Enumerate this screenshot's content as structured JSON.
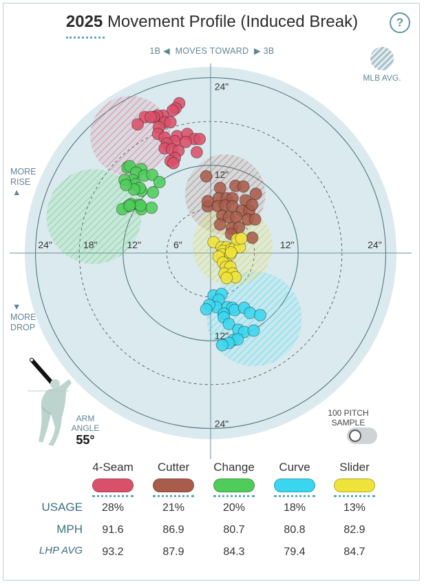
{
  "header": {
    "year": "2025",
    "title": "Movement Profile (Induced Break)",
    "help": "?"
  },
  "direction": {
    "left": "1B",
    "middle": "MOVES TOWARD",
    "right": "3B"
  },
  "legend": {
    "mlb_avg": "MLB AVG."
  },
  "side_labels": {
    "rise_1": "MORE",
    "rise_2": "RISE",
    "drop_1": "MORE",
    "drop_2": "DROP"
  },
  "arm_angle": {
    "label_1": "ARM",
    "label_2": "ANGLE",
    "value": "55°"
  },
  "sample_toggle": {
    "label_1": "100 PITCH",
    "label_2": "SAMPLE",
    "on": false
  },
  "table": {
    "row_labels": {
      "usage": "USAGE",
      "mph": "MPH",
      "lhp_avg": "LHP AVG"
    },
    "pitches": [
      {
        "name": "4-Seam",
        "color": "#d9506a",
        "usage": "28%",
        "mph": "91.6",
        "lhp_avg": "93.2"
      },
      {
        "name": "Cutter",
        "color": "#a85c4b",
        "usage": "21%",
        "mph": "86.9",
        "lhp_avg": "87.9"
      },
      {
        "name": "Change",
        "color": "#4fcc5a",
        "usage": "20%",
        "mph": "80.7",
        "lhp_avg": "84.3"
      },
      {
        "name": "Curve",
        "color": "#3ad6ef",
        "usage": "18%",
        "mph": "80.8",
        "lhp_avg": "79.4"
      },
      {
        "name": "Slider",
        "color": "#efe33a",
        "usage": "13%",
        "mph": "82.9",
        "lhp_avg": "84.7"
      }
    ]
  },
  "chart_data": {
    "type": "scatter",
    "title": "Movement Profile (Induced Break)",
    "xlabel": "",
    "ylabel": "",
    "units": "inches",
    "rings": [
      6,
      12,
      18,
      24
    ],
    "ring_labels": {
      "left": [
        "24\"",
        "18\"",
        "12\"",
        "6\""
      ],
      "right": [
        "12\"",
        "24\""
      ],
      "top": [
        "24\"",
        "12\""
      ],
      "bottom": [
        "12\"",
        "24\""
      ]
    },
    "x_orientation": "positive = toward 3B (right)",
    "y_orientation": "positive = more rise",
    "mlb_avg": [
      {
        "name": "4-Seam",
        "color": "#d9506a",
        "x": -11,
        "y": 16,
        "r": 5.5
      },
      {
        "name": "Cutter",
        "color": "#a85c4b",
        "x": 2,
        "y": 8,
        "r": 5.5
      },
      {
        "name": "Change",
        "color": "#4fcc5a",
        "x": -16,
        "y": 5,
        "r": 6.5
      },
      {
        "name": "Curve",
        "color": "#3ad6ef",
        "x": 6,
        "y": -9,
        "r": 6.5
      },
      {
        "name": "Slider",
        "color": "#efe33a",
        "x": 3,
        "y": 1,
        "r": 5.5
      }
    ],
    "series": [
      {
        "name": "4-Seam",
        "color": "#d9506a",
        "points": [
          [
            -4.3,
            20.5
          ],
          [
            -4.8,
            19.8
          ],
          [
            -5.2,
            19.5
          ],
          [
            -6.5,
            18.8
          ],
          [
            -7.3,
            18.8
          ],
          [
            -7.8,
            18.6
          ],
          [
            -9,
            18.6
          ],
          [
            -8.2,
            18.6
          ],
          [
            -6.3,
            17.9
          ],
          [
            -5.5,
            17.9
          ],
          [
            -7.1,
            17.2
          ],
          [
            -7.2,
            16.3
          ],
          [
            -6.3,
            15.8
          ],
          [
            -4.6,
            16
          ],
          [
            -3.2,
            16.3
          ],
          [
            -2.2,
            15.6
          ],
          [
            -1.5,
            15.6
          ],
          [
            -4.9,
            15.3
          ],
          [
            -3.4,
            15.2
          ],
          [
            -6,
            15
          ],
          [
            -6.3,
            14.3
          ],
          [
            -5.3,
            14.2
          ],
          [
            -4.4,
            14
          ],
          [
            -1.9,
            13.8
          ],
          [
            -4.9,
            13
          ],
          [
            -5.5,
            12.6
          ],
          [
            -5.1,
            12.3
          ],
          [
            -10,
            17.6
          ]
        ]
      },
      {
        "name": "Cutter",
        "color": "#a85c4b",
        "points": [
          [
            -0.6,
            10.5
          ],
          [
            1.3,
            8.9
          ],
          [
            3.4,
            9.2
          ],
          [
            4.5,
            9.1
          ],
          [
            1.1,
            7.5
          ],
          [
            2.2,
            7.5
          ],
          [
            3,
            7.5
          ],
          [
            4.8,
            7.2
          ],
          [
            -0.4,
            6.4
          ],
          [
            -0.4,
            7.1
          ],
          [
            1,
            6.4
          ],
          [
            2,
            6.5
          ],
          [
            3,
            6.4
          ],
          [
            4.3,
            5.8
          ],
          [
            5.3,
            5.8
          ],
          [
            5.7,
            6.6
          ],
          [
            6.2,
            8.1
          ],
          [
            1.6,
            5.1
          ],
          [
            2.5,
            4.9
          ],
          [
            3.5,
            4.9
          ],
          [
            5.1,
            4.6
          ],
          [
            6.1,
            4.6
          ],
          [
            2.9,
            3.4
          ],
          [
            3.9,
            3.5
          ],
          [
            5.7,
            2.1
          ],
          [
            1.3,
            3.9
          ],
          [
            2.8,
            2.6
          ]
        ]
      },
      {
        "name": "Change",
        "color": "#4fcc5a",
        "points": [
          [
            -11.4,
            11.7
          ],
          [
            -11.1,
            11.9
          ],
          [
            -9.5,
            11.5
          ],
          [
            -10.2,
            11
          ],
          [
            -9.1,
            10.6
          ],
          [
            -8,
            10.7
          ],
          [
            -7,
            9.7
          ],
          [
            -10.7,
            10
          ],
          [
            -11.8,
            10
          ],
          [
            -10.3,
            9.4
          ],
          [
            -9.5,
            8.5
          ],
          [
            -9.7,
            8.9
          ],
          [
            -10.5,
            8.7
          ],
          [
            -7.9,
            8.3
          ],
          [
            -11.6,
            9.3
          ],
          [
            -11.3,
            6.4
          ],
          [
            -12.1,
            6
          ],
          [
            -10.9,
            6.7
          ],
          [
            -9.8,
            6.6
          ],
          [
            -9.5,
            6
          ],
          [
            -8.1,
            6.2
          ],
          [
            -9.6,
            6.5
          ],
          [
            -11.1,
            6.5
          ]
        ]
      },
      {
        "name": "Curve",
        "color": "#3ad6ef",
        "points": [
          [
            0.4,
            -5.8
          ],
          [
            1.5,
            -5.6
          ],
          [
            1.1,
            -6.4
          ],
          [
            0.8,
            -7.4
          ],
          [
            2.3,
            -7.4
          ],
          [
            3,
            -7.5
          ],
          [
            3.3,
            -7.8
          ],
          [
            1.8,
            -8.3
          ],
          [
            -0.2,
            -7.1
          ],
          [
            -0.6,
            -7.7
          ],
          [
            4.6,
            -7.5
          ],
          [
            5.4,
            -8.2
          ],
          [
            1.8,
            -8.8
          ],
          [
            6.8,
            -8.5
          ],
          [
            2.5,
            -9.7
          ],
          [
            3.8,
            -10.5
          ],
          [
            4.6,
            -10.8
          ],
          [
            5.9,
            -10.6
          ],
          [
            3.1,
            -11.9
          ],
          [
            3.7,
            -11.8
          ],
          [
            2.5,
            -12.3
          ],
          [
            1.6,
            -12.6
          ]
        ]
      },
      {
        "name": "Slider",
        "color": "#efe33a",
        "points": [
          [
            0.4,
            1.5
          ],
          [
            1.5,
            0.8
          ],
          [
            2.2,
            0.8
          ],
          [
            1.7,
            0.3
          ],
          [
            2.8,
            0.5
          ],
          [
            3.3,
            0.7
          ],
          [
            4,
            0.8
          ],
          [
            1.6,
            -0.2
          ],
          [
            2.7,
            -0.2
          ],
          [
            2.2,
            -1.5
          ],
          [
            1.1,
            -0.5
          ],
          [
            1.7,
            -1.3
          ],
          [
            2.1,
            -1.9
          ],
          [
            2.7,
            -1.9
          ],
          [
            1.9,
            -2.8
          ],
          [
            3,
            -2.8
          ],
          [
            3.4,
            -3.3
          ],
          [
            2.2,
            -3.4
          ],
          [
            3.6,
            1.9
          ],
          [
            4.2,
            2
          ],
          [
            2.8,
            0.1
          ]
        ]
      }
    ]
  }
}
